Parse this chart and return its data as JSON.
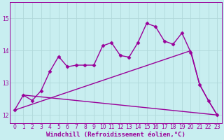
{
  "background_color": "#c8eef0",
  "grid_color": "#b0d8da",
  "line_color": "#990099",
  "marker": "D",
  "markersize": 2.5,
  "linewidth": 1.0,
  "xlabel": "Windchill (Refroidissement éolien,°C)",
  "xlabel_fontsize": 6.5,
  "tick_fontsize": 5.5,
  "ylim": [
    11.75,
    15.5
  ],
  "xlim": [
    -0.5,
    23.5
  ],
  "yticks": [
    12,
    13,
    14,
    15
  ],
  "xticks": [
    0,
    1,
    2,
    3,
    4,
    5,
    6,
    7,
    8,
    9,
    10,
    11,
    12,
    13,
    14,
    15,
    16,
    17,
    18,
    19,
    20,
    21,
    22,
    23
  ],
  "line1_x": [
    0,
    1,
    2,
    3,
    4,
    5,
    6,
    7,
    8,
    9,
    10,
    11,
    12,
    13,
    14,
    15,
    16,
    17,
    18,
    19,
    20,
    21,
    22,
    23
  ],
  "line1_y": [
    12.15,
    12.62,
    12.45,
    12.75,
    13.35,
    13.82,
    13.5,
    13.55,
    13.55,
    13.55,
    14.15,
    14.25,
    13.85,
    13.8,
    14.25,
    14.85,
    14.75,
    14.3,
    14.2,
    14.55,
    13.95,
    12.95,
    12.45,
    12.0
  ],
  "line2_x": [
    0,
    20,
    21,
    22,
    23
  ],
  "line2_y": [
    12.15,
    14.0,
    12.95,
    12.45,
    12.0
  ],
  "line3_x": [
    0,
    20,
    21,
    22,
    23
  ],
  "line3_y": [
    12.15,
    14.0,
    12.95,
    12.45,
    12.0
  ],
  "rise_line_x": [
    0,
    20
  ],
  "rise_line_y": [
    12.15,
    14.0
  ],
  "flat_line_x": [
    1,
    23
  ],
  "flat_line_y": [
    12.62,
    12.0
  ]
}
